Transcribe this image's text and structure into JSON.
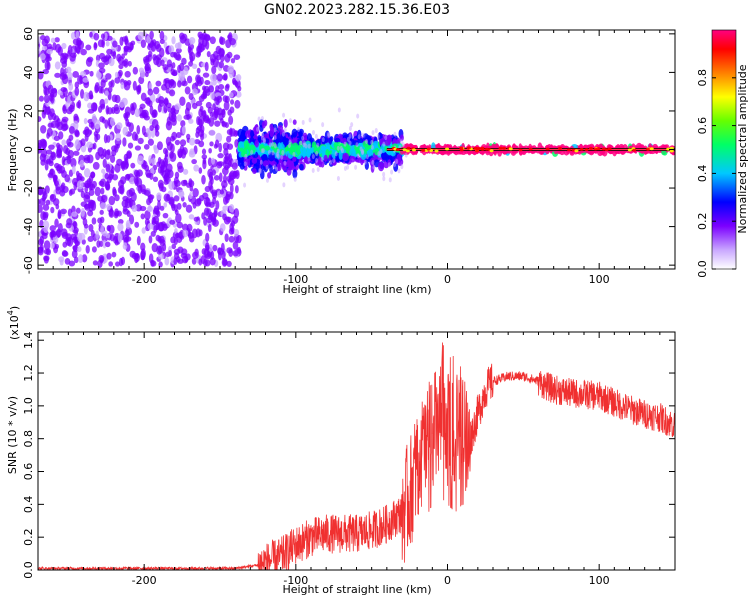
{
  "figure_title": "GN02.2023.282.15.36.E03",
  "chart_data": [
    {
      "type": "heatmap",
      "xlabel": "Height of straight line (km)",
      "ylabel": "Frequency (Hz)",
      "xlim": [
        -270,
        150
      ],
      "ylim": [
        -62,
        62
      ],
      "x_ticks": [
        -200,
        -100,
        0,
        100
      ],
      "x_tick_labels": [
        "-200",
        "-100",
        "0",
        "100"
      ],
      "y_ticks": [
        -60,
        -40,
        -20,
        0,
        20,
        40,
        60
      ],
      "y_tick_labels": [
        "-60",
        "-40",
        "-20",
        "0",
        "20",
        "40",
        "60"
      ],
      "regions": [
        {
          "x_range": [
            -270,
            -137
          ],
          "freq_spread": 60,
          "amplitude": 0.15
        },
        {
          "x_range": [
            -137,
            -95
          ],
          "freq_spread": 12,
          "amplitude": 0.3
        },
        {
          "x_range": [
            -95,
            -30
          ],
          "freq_spread": 8,
          "amplitude": 0.35
        },
        {
          "x_range": [
            -30,
            150
          ],
          "freq_spread": 2,
          "amplitude": 0.95
        }
      ],
      "colorbar": {
        "label": "Normalized spectral amplitude",
        "range": [
          0,
          1
        ],
        "ticks": [
          0.0,
          0.2,
          0.4,
          0.6,
          0.8
        ],
        "tick_labels": [
          "0.0",
          "0.2",
          "0.4",
          "0.6",
          "0.8"
        ],
        "colors": [
          "#ffffff",
          "#8a2be2",
          "#0000ff",
          "#00ffff",
          "#00ff00",
          "#ffff00",
          "#ff0000",
          "#ff0080"
        ]
      }
    },
    {
      "type": "line",
      "xlabel": "Height of straight line (km)",
      "ylabel": "SNR (10 * v/v)",
      "y_multiplier": "(x10",
      "y_multiplier_exp": "4",
      "y_multiplier_close": ")",
      "xlim": [
        -270,
        150
      ],
      "ylim": [
        0,
        1.45
      ],
      "x_ticks": [
        -200,
        -100,
        0,
        100
      ],
      "x_tick_labels": [
        "-200",
        "-100",
        "0",
        "100"
      ],
      "y_ticks": [
        0.0,
        0.2,
        0.4,
        0.6,
        0.8,
        1.0,
        1.2,
        1.4
      ],
      "y_tick_labels": [
        "0.0",
        "0.2",
        "0.4",
        "0.6",
        "0.8",
        "1.0",
        "1.2",
        "1.4"
      ],
      "series": [
        {
          "color": "#f03030",
          "x": [
            -270,
            -200,
            -140,
            -125,
            -110,
            -100,
            -90,
            -80,
            -70,
            -60,
            -50,
            -40,
            -30,
            -25,
            -20,
            -15,
            -10,
            -5,
            0,
            5,
            10,
            15,
            20,
            25,
            30,
            40,
            50,
            60,
            65,
            70,
            80,
            90,
            100,
            110,
            120,
            130,
            140,
            150
          ],
          "y": [
            0.01,
            0.01,
            0.01,
            0.03,
            0.08,
            0.15,
            0.2,
            0.22,
            0.22,
            0.22,
            0.24,
            0.28,
            0.35,
            0.45,
            0.65,
            0.75,
            0.85,
            0.9,
            0.85,
            0.8,
            0.85,
            0.8,
            0.95,
            1.1,
            1.15,
            1.18,
            1.18,
            1.15,
            1.12,
            1.1,
            1.08,
            1.07,
            1.06,
            1.02,
            0.98,
            0.95,
            0.93,
            0.88
          ]
        }
      ]
    }
  ]
}
